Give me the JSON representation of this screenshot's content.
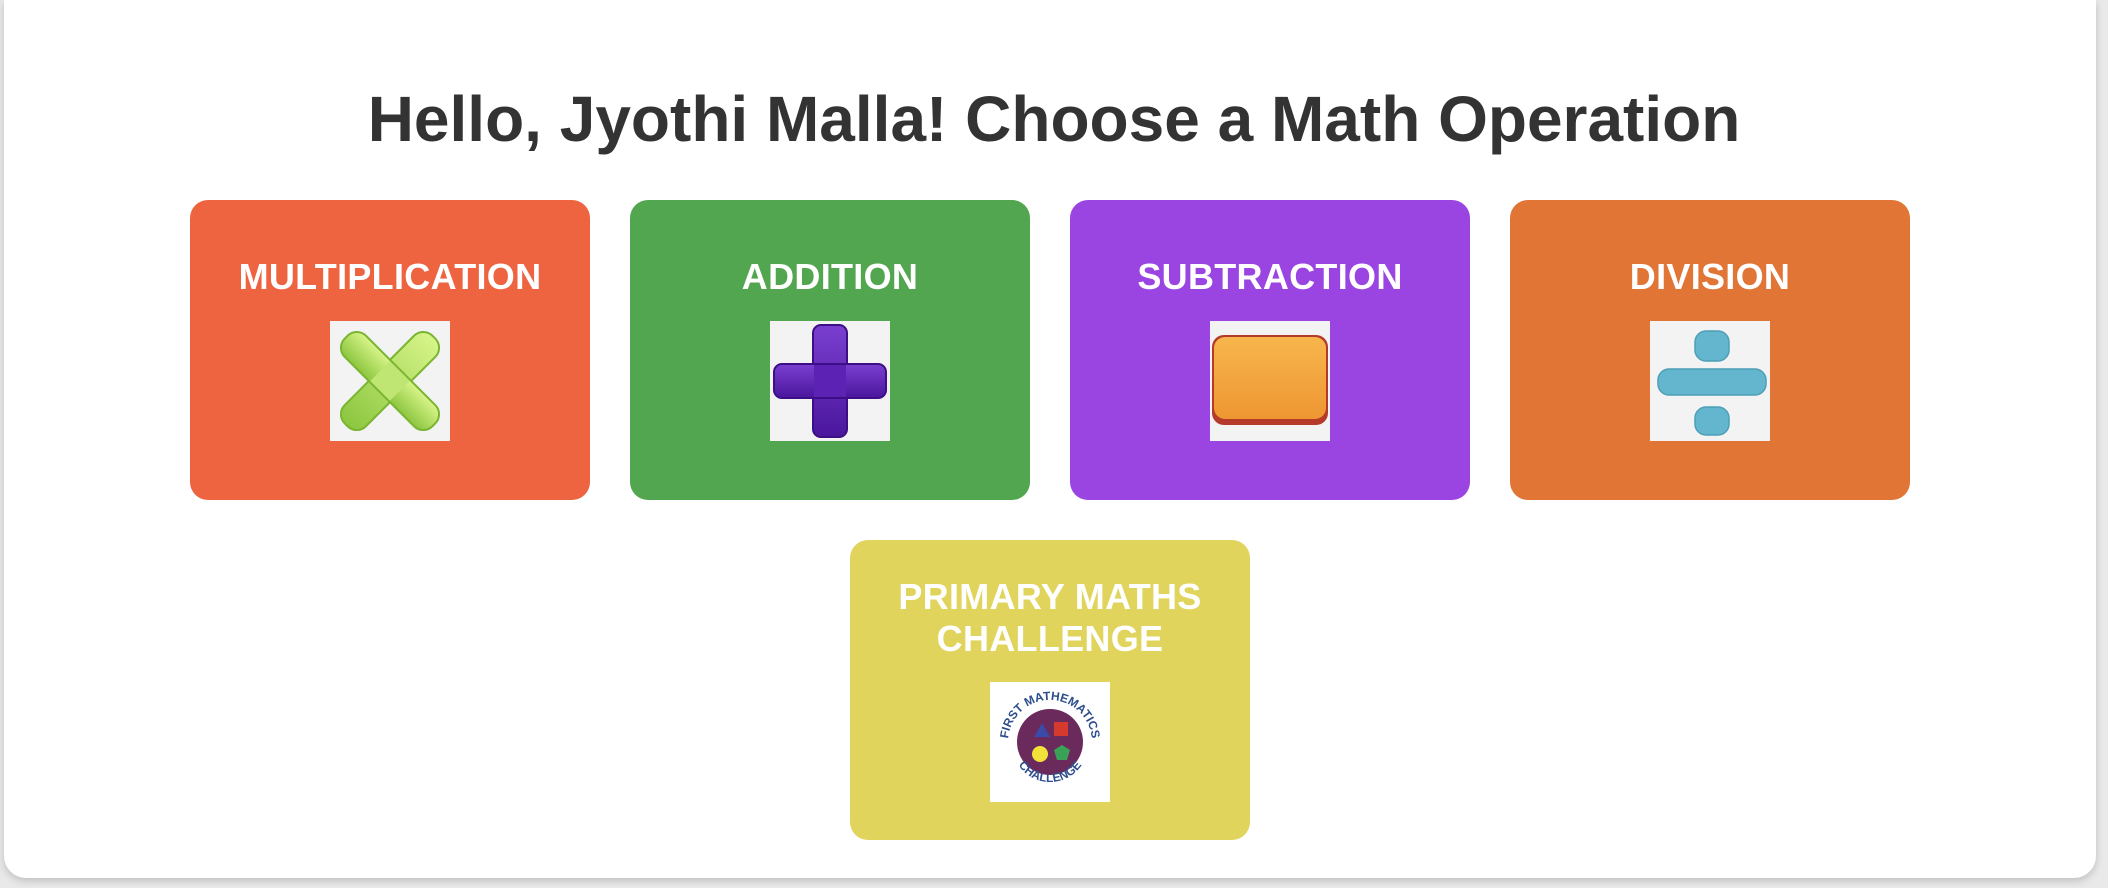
{
  "page": {
    "title": "Hello, Jyothi Malla! Choose a Math Operation"
  },
  "operations": [
    {
      "label": "MULTIPLICATION",
      "color": "#ee6441",
      "icon": "multiply-icon"
    },
    {
      "label": "ADDITION",
      "color": "#52a64f",
      "icon": "plus-icon"
    },
    {
      "label": "SUBTRACTION",
      "color": "#9a45e2",
      "icon": "minus-icon"
    },
    {
      "label": "DIVISION",
      "color": "#e07536",
      "icon": "divide-icon"
    }
  ],
  "challenge": {
    "label_line1": "PRIMARY MATHS",
    "label_line2": "CHALLENGE",
    "color": "#e1d45d",
    "icon": "first-mathematics-challenge-logo",
    "logo_text_top": "FIRST MATHEMATICS",
    "logo_text_bottom": "CHALLENGE"
  }
}
